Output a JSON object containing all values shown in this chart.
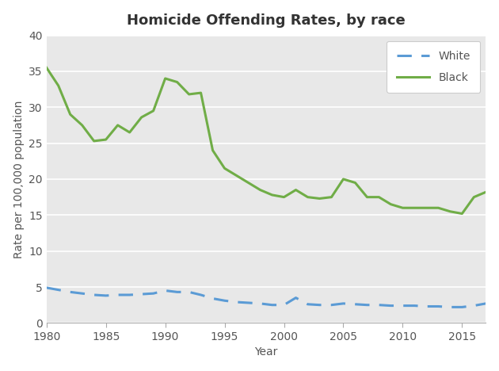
{
  "title": "Homicide Offending Rates, by race",
  "xlabel": "Year",
  "ylabel": "Rate per 100,000 population",
  "ylim": [
    0,
    40
  ],
  "yticks": [
    0,
    5,
    10,
    15,
    20,
    25,
    30,
    35,
    40
  ],
  "fig_bg_color": "#ffffff",
  "plot_bg_color": "#e8e8e8",
  "white_years": [
    1980,
    1981,
    1982,
    1983,
    1984,
    1985,
    1986,
    1987,
    1988,
    1989,
    1990,
    1991,
    1992,
    1993,
    1994,
    1995,
    1996,
    1997,
    1998,
    1999,
    2000,
    2001,
    2002,
    2003,
    2004,
    2005,
    2006,
    2007,
    2008,
    2009,
    2010,
    2011,
    2012,
    2013,
    2014,
    2015,
    2016,
    2017
  ],
  "white_values": [
    4.9,
    4.6,
    4.3,
    4.1,
    3.9,
    3.8,
    3.9,
    3.9,
    4.0,
    4.1,
    4.5,
    4.3,
    4.3,
    3.9,
    3.4,
    3.1,
    2.9,
    2.8,
    2.7,
    2.5,
    2.5,
    3.5,
    2.6,
    2.5,
    2.5,
    2.7,
    2.6,
    2.5,
    2.5,
    2.4,
    2.4,
    2.4,
    2.3,
    2.3,
    2.2,
    2.2,
    2.4,
    2.7
  ],
  "black_years": [
    1980,
    1981,
    1982,
    1983,
    1984,
    1985,
    1986,
    1987,
    1988,
    1989,
    1990,
    1991,
    1992,
    1993,
    1994,
    1995,
    1996,
    1997,
    1998,
    1999,
    2000,
    2001,
    2002,
    2003,
    2004,
    2005,
    2006,
    2007,
    2008,
    2009,
    2010,
    2011,
    2012,
    2013,
    2014,
    2015,
    2016,
    2017
  ],
  "black_values": [
    35.5,
    33.0,
    29.0,
    27.5,
    25.3,
    25.5,
    27.5,
    26.5,
    28.6,
    29.5,
    34.0,
    33.5,
    31.8,
    32.0,
    24.0,
    21.5,
    20.5,
    19.5,
    18.5,
    17.8,
    17.5,
    18.5,
    17.5,
    17.3,
    17.5,
    20.0,
    19.5,
    17.5,
    17.5,
    16.5,
    16.0,
    16.0,
    16.0,
    16.0,
    15.5,
    15.2,
    17.5,
    18.2
  ],
  "white_color": "#5b9bd5",
  "black_color": "#70ad47",
  "white_linestyle": "dashed",
  "black_linestyle": "solid",
  "legend_labels": [
    "White",
    "Black"
  ],
  "title_fontsize": 13,
  "axis_label_fontsize": 10,
  "tick_fontsize": 10,
  "grid_color": "#ffffff",
  "grid_linewidth": 1.2
}
